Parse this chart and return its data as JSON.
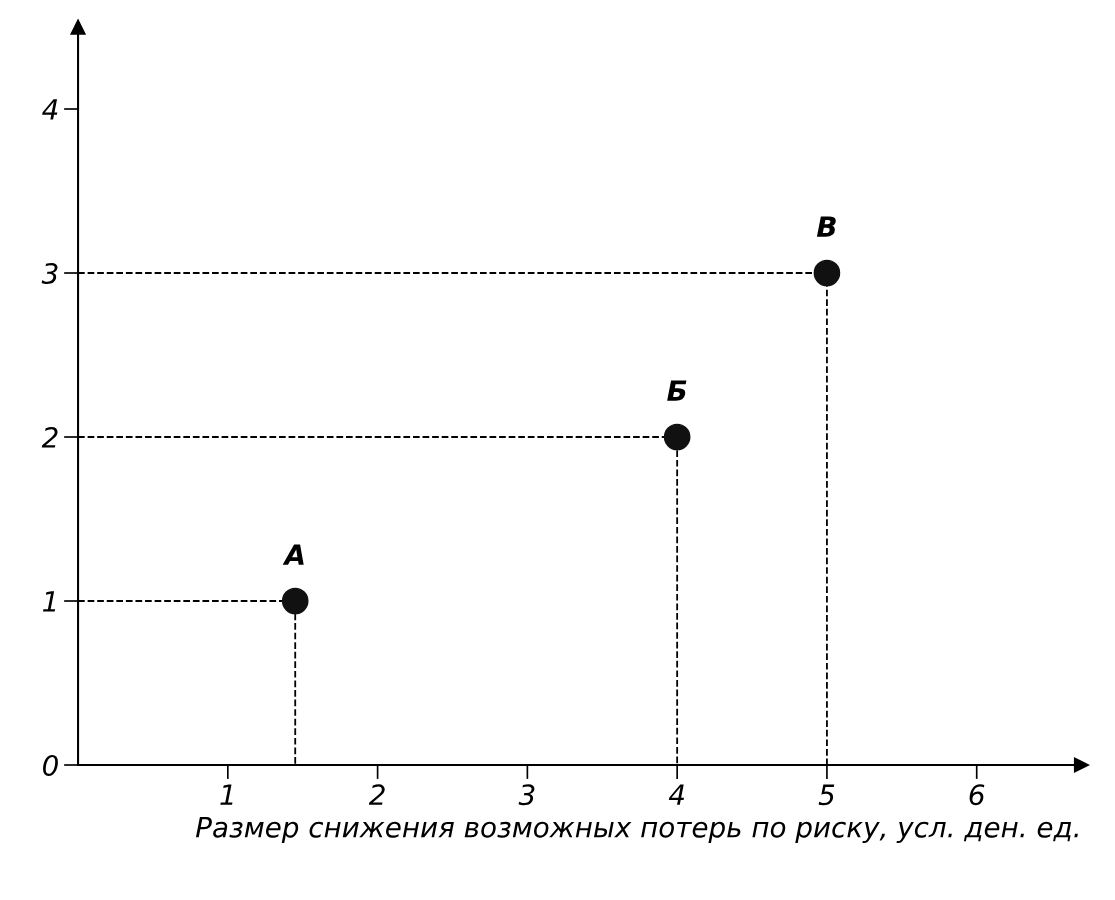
{
  "chart_data": {
    "type": "scatter",
    "xlabel": "Размер снижения возможных потерь по риску, усл. ден. ед.",
    "xlim": [
      0,
      6.7
    ],
    "ylim": [
      0,
      4.5
    ],
    "xticks": [
      1,
      2,
      3,
      4,
      5,
      6
    ],
    "yticks": [
      0,
      1,
      2,
      3,
      4
    ],
    "grid": false,
    "legend": false,
    "series": [
      {
        "type": "line",
        "line_style": "dashed",
        "color": "#000000",
        "x": [
          0,
          1.45,
          1.45
        ],
        "values": [
          1,
          1,
          0
        ],
        "marker": "none"
      },
      {
        "type": "line",
        "line_style": "dashed",
        "color": "#000000",
        "x": [
          0,
          4,
          4
        ],
        "values": [
          2,
          2,
          0
        ],
        "marker": "none"
      },
      {
        "type": "line",
        "line_style": "dashed",
        "color": "#000000",
        "x": [
          0,
          5,
          5
        ],
        "values": [
          3,
          3,
          0
        ],
        "marker": "none"
      },
      {
        "color": "#111111",
        "marker": "circle",
        "x": [
          1.45,
          4,
          5
        ],
        "values": [
          1,
          2,
          3
        ]
      }
    ],
    "annotations": [
      {
        "text": "А",
        "x": 1.45,
        "y": 1
      },
      {
        "text": "Б",
        "x": 4,
        "y": 2
      },
      {
        "text": "В",
        "x": 5,
        "y": 3
      }
    ]
  }
}
